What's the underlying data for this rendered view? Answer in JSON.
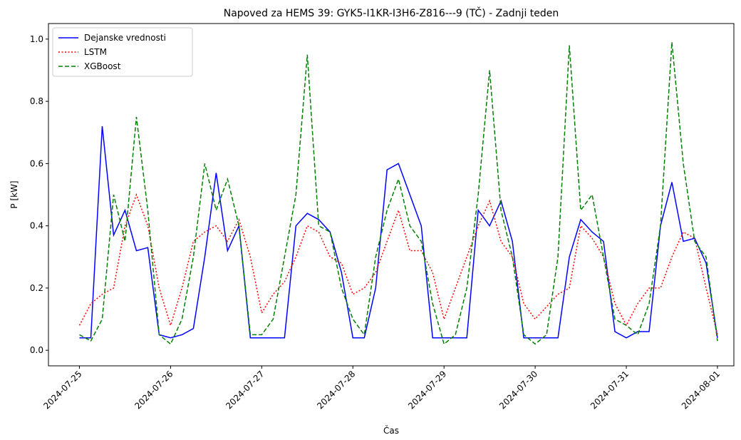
{
  "chart_data": {
    "type": "line",
    "title": "Napoved za HEMS 39: GYK5-I1KR-I3H6-Z816---9 (TČ) - Zadnji teden",
    "xlabel": "Čas",
    "ylabel": "P [kW]",
    "legend": "upper left",
    "grid": false,
    "x": [
      0,
      0.125,
      0.25,
      0.375,
      0.5,
      0.625,
      0.75,
      0.875,
      1,
      1.125,
      1.25,
      1.375,
      1.5,
      1.625,
      1.75,
      1.875,
      2,
      2.125,
      2.25,
      2.375,
      2.5,
      2.625,
      2.75,
      2.875,
      3,
      3.125,
      3.25,
      3.375,
      3.5,
      3.625,
      3.75,
      3.875,
      4,
      4.125,
      4.25,
      4.375,
      4.5,
      4.625,
      4.75,
      4.875,
      5,
      5.125,
      5.25,
      5.375,
      5.5,
      5.625,
      5.75,
      5.875,
      6,
      6.125,
      6.25,
      6.375,
      6.5,
      6.625,
      6.75,
      6.875,
      7
    ],
    "xlim": [
      -0.34,
      7.18
    ],
    "xticks": [
      {
        "value": 0,
        "label": "2024-07-25"
      },
      {
        "value": 1,
        "label": "2024-07-26"
      },
      {
        "value": 2,
        "label": "2024-07-27"
      },
      {
        "value": 3,
        "label": "2024-07-28"
      },
      {
        "value": 4,
        "label": "2024-07-29"
      },
      {
        "value": 5,
        "label": "2024-07-30"
      },
      {
        "value": 6,
        "label": "2024-07-31"
      },
      {
        "value": 7,
        "label": "2024-08-01"
      }
    ],
    "ylim": [
      -0.05,
      1.05
    ],
    "yticks": [
      {
        "value": 0,
        "label": "0.0"
      },
      {
        "value": 0.2,
        "label": "0.2"
      },
      {
        "value": 0.4,
        "label": "0.4"
      },
      {
        "value": 0.6,
        "label": "0.6"
      },
      {
        "value": 0.8,
        "label": "0.8"
      },
      {
        "value": 1,
        "label": "1.0"
      }
    ],
    "series": [
      {
        "name": "Dejanske vrednosti",
        "color": "#0000ff",
        "style": "solid",
        "values": [
          0.04,
          0.04,
          0.72,
          0.37,
          0.45,
          0.32,
          0.33,
          0.05,
          0.04,
          0.05,
          0.07,
          0.3,
          0.57,
          0.32,
          0.4,
          0.04,
          0.04,
          0.04,
          0.04,
          0.4,
          0.44,
          0.42,
          0.38,
          0.25,
          0.04,
          0.04,
          0.2,
          0.58,
          0.6,
          0.5,
          0.4,
          0.04,
          0.04,
          0.04,
          0.04,
          0.45,
          0.4,
          0.48,
          0.35,
          0.04,
          0.04,
          0.04,
          0.04,
          0.3,
          0.42,
          0.38,
          0.35,
          0.06,
          0.04,
          0.06,
          0.06,
          0.4,
          0.54,
          0.35,
          0.36,
          0.28,
          0.04
        ]
      },
      {
        "name": "LSTM",
        "color": "#ff0000",
        "style": "dotted",
        "values": [
          0.08,
          0.15,
          0.18,
          0.2,
          0.4,
          0.5,
          0.4,
          0.2,
          0.08,
          0.2,
          0.35,
          0.38,
          0.4,
          0.35,
          0.42,
          0.3,
          0.12,
          0.18,
          0.22,
          0.3,
          0.4,
          0.38,
          0.3,
          0.28,
          0.18,
          0.2,
          0.25,
          0.35,
          0.45,
          0.32,
          0.32,
          0.25,
          0.1,
          0.2,
          0.3,
          0.4,
          0.48,
          0.35,
          0.3,
          0.15,
          0.1,
          0.14,
          0.18,
          0.2,
          0.4,
          0.36,
          0.3,
          0.15,
          0.08,
          0.15,
          0.2,
          0.2,
          0.3,
          0.38,
          0.36,
          0.2,
          0.05
        ]
      },
      {
        "name": "XGBoost",
        "color": "#008000",
        "style": "dashed",
        "values": [
          0.05,
          0.03,
          0.1,
          0.5,
          0.35,
          0.75,
          0.45,
          0.05,
          0.02,
          0.1,
          0.3,
          0.6,
          0.45,
          0.55,
          0.4,
          0.05,
          0.05,
          0.1,
          0.3,
          0.5,
          0.95,
          0.4,
          0.38,
          0.2,
          0.1,
          0.05,
          0.3,
          0.45,
          0.55,
          0.4,
          0.35,
          0.15,
          0.02,
          0.05,
          0.2,
          0.5,
          0.9,
          0.45,
          0.3,
          0.05,
          0.02,
          0.05,
          0.3,
          0.98,
          0.45,
          0.5,
          0.3,
          0.1,
          0.08,
          0.05,
          0.15,
          0.4,
          0.99,
          0.6,
          0.35,
          0.3,
          0.03
        ]
      }
    ]
  }
}
